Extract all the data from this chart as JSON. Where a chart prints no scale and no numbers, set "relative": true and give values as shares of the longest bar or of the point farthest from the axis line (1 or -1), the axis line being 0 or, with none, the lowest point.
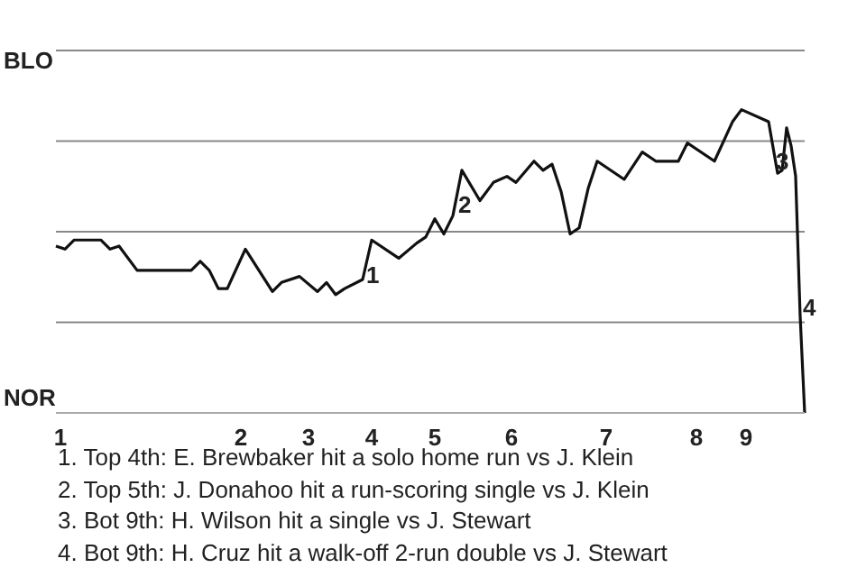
{
  "chart_data": {
    "type": "line",
    "relative": true,
    "categories": [
      null,
      "1",
      null,
      null,
      null,
      null,
      null,
      null,
      null,
      null,
      null,
      null,
      null,
      null,
      null,
      null,
      null,
      null,
      null,
      null,
      null,
      null,
      null,
      null,
      null,
      null,
      null,
      null,
      null,
      null,
      null,
      null,
      null,
      null,
      null,
      null,
      null,
      null,
      null,
      null,
      null,
      "2",
      null,
      null,
      null,
      null,
      null,
      null,
      null,
      null,
      null,
      null,
      null,
      null,
      null,
      null,
      "3",
      null,
      null,
      null,
      null,
      null,
      null,
      null,
      null,
      null,
      null,
      null,
      null,
      null,
      "4",
      null,
      null,
      null,
      null,
      null,
      null,
      null,
      null,
      null,
      null,
      null,
      null,
      null,
      "5",
      null,
      null,
      null,
      null,
      null,
      null,
      null,
      null,
      null,
      null,
      null,
      null,
      null,
      null,
      null,
      null,
      "6",
      null,
      null,
      null,
      null,
      null,
      null,
      null,
      null,
      null,
      null,
      null,
      null,
      null,
      null,
      null,
      null,
      null,
      null,
      null,
      null,
      "7",
      null,
      null,
      null,
      null,
      null,
      null,
      null,
      null,
      null,
      null,
      null,
      null,
      null,
      null,
      null,
      null,
      null,
      null,
      null,
      "8",
      null,
      null,
      null,
      null,
      null,
      null,
      null,
      null,
      null,
      null,
      "9",
      null,
      null,
      null,
      null,
      null,
      null,
      null,
      null,
      null,
      null,
      null,
      null,
      null
    ],
    "series": [
      {
        "color": "#111111",
        "values": [
          0.55,
          null,
          0.54,
          null,
          0.57,
          null,
          null,
          null,
          null,
          null,
          0.57,
          null,
          0.54,
          null,
          0.55,
          null,
          null,
          null,
          0.47,
          null,
          null,
          null,
          null,
          null,
          null,
          null,
          null,
          null,
          null,
          null,
          0.47,
          null,
          0.5,
          null,
          0.47,
          null,
          0.41,
          null,
          0.41,
          null,
          null,
          null,
          0.54,
          null,
          null,
          0.47,
          null,
          null,
          0.4,
          null,
          0.43,
          null,
          null,
          null,
          0.45,
          null,
          null,
          null,
          0.4,
          null,
          0.43,
          null,
          0.39,
          null,
          0.41,
          null,
          null,
          null,
          0.44,
          null,
          0.57,
          null,
          null,
          null,
          null,
          null,
          0.51,
          null,
          null,
          null,
          0.56,
          null,
          0.58,
          null,
          0.64,
          null,
          0.59,
          null,
          0.65,
          null,
          0.8,
          null,
          null,
          null,
          0.7,
          null,
          null,
          0.76,
          null,
          null,
          0.78,
          null,
          0.76,
          null,
          null,
          null,
          0.83,
          null,
          0.8,
          null,
          0.82,
          null,
          0.73,
          null,
          0.59,
          null,
          0.61,
          null,
          0.74,
          null,
          0.83,
          null,
          null,
          null,
          null,
          null,
          0.77,
          null,
          null,
          null,
          0.86,
          null,
          null,
          0.83,
          null,
          null,
          null,
          null,
          0.83,
          null,
          0.89,
          null,
          null,
          null,
          null,
          null,
          0.83,
          null,
          null,
          null,
          0.96,
          null,
          1,
          null,
          null,
          null,
          null,
          null,
          0.96,
          null,
          0.79,
          0.8,
          0.94,
          0.88,
          0.78,
          0.32,
          0
        ]
      }
    ],
    "grid": "y",
    "marker": "none",
    "line_style": "solid",
    "annotations": [
      "BLO",
      "NOR",
      "1",
      "2",
      "3",
      "4",
      "1. Top 4th: E. Brewbaker hit a solo home run vs J. Klein",
      "2. Top 5th: J. Donahoo hit a run-scoring single vs J. Klein",
      "3. Bot 9th: H. Wilson hit a single vs J. Stewart",
      "4. Bot 9th: H. Cruz hit a walk-off 2-run double vs J. Stewart"
    ]
  }
}
